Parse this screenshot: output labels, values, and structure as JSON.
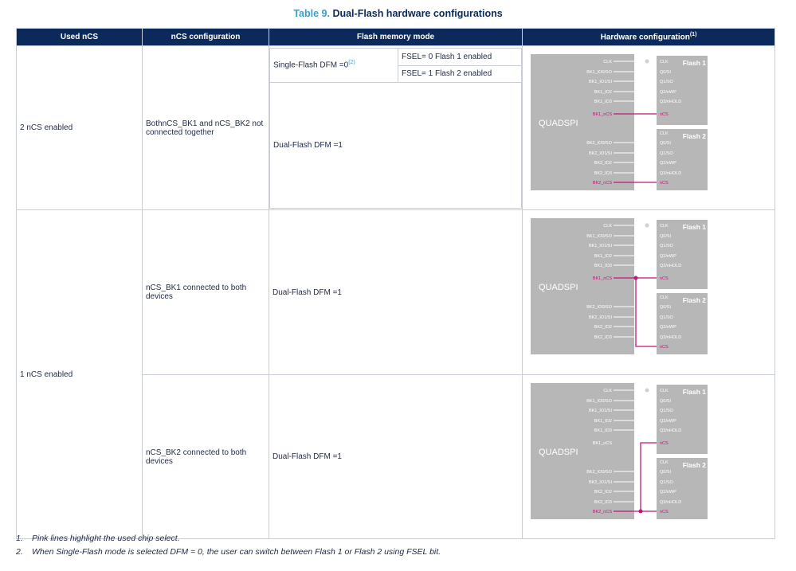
{
  "title": {
    "number": "Table 9.",
    "text": "Dual-Flash hardware configurations"
  },
  "headers": {
    "used": "Used nCS",
    "config": "nCS configuration",
    "mode": "Flash memory mode",
    "hw": "Hardware configuration",
    "hw_sup": "(1)"
  },
  "rows": {
    "r1_used": "2 nCS enabled",
    "r1_config": "BothnCS_BK1 and nCS_BK2 not connected together",
    "r1_single": "Single-Flash DFM =0",
    "r1_single_sup": "(2)",
    "r1_fsel0": "FSEL= 0 Flash 1 enabled",
    "r1_fsel1": "FSEL= 1 Flash 2 enabled",
    "r1_dual": "Dual-Flash DFM =1",
    "r23_used": "1 nCS enabled",
    "r2_config": "nCS_BK1 connected to both devices",
    "r2_mode": "Dual-Flash DFM =1",
    "r3_config": "nCS_BK2 connected to both devices",
    "r3_mode": "Dual-Flash DFM =1"
  },
  "diagram": {
    "quadspi": "QUADSPI",
    "flash1": "Flash 1",
    "flash2": "Flash 2",
    "pins_left_top": [
      "CLK",
      "BK1_IO0/SO",
      "BK1_IO1/SI",
      "BK1_IO2",
      "BK1_IO3",
      "BK1_nCS"
    ],
    "pins_left_bottom": [
      "BK2_IO0/SO",
      "BK2_IO1/SI",
      "BK2_IO2",
      "BK2_IO3",
      "BK2_nCS"
    ],
    "pins_flash": [
      "CLK",
      "Q0/SI",
      "Q1/SO",
      "Q2/nWP",
      "Q3/nHOLD",
      "nCS"
    ],
    "highlight_color": "#c0157a",
    "wire_color": "#ffffff"
  },
  "notes": [
    {
      "num": "1.",
      "text": "Pink lines highlight the used chip select."
    },
    {
      "num": "2.",
      "text": "When Single-Flash mode is selected DFM = 0, the user can switch between Flash 1 or Flash 2 using FSEL bit."
    }
  ]
}
